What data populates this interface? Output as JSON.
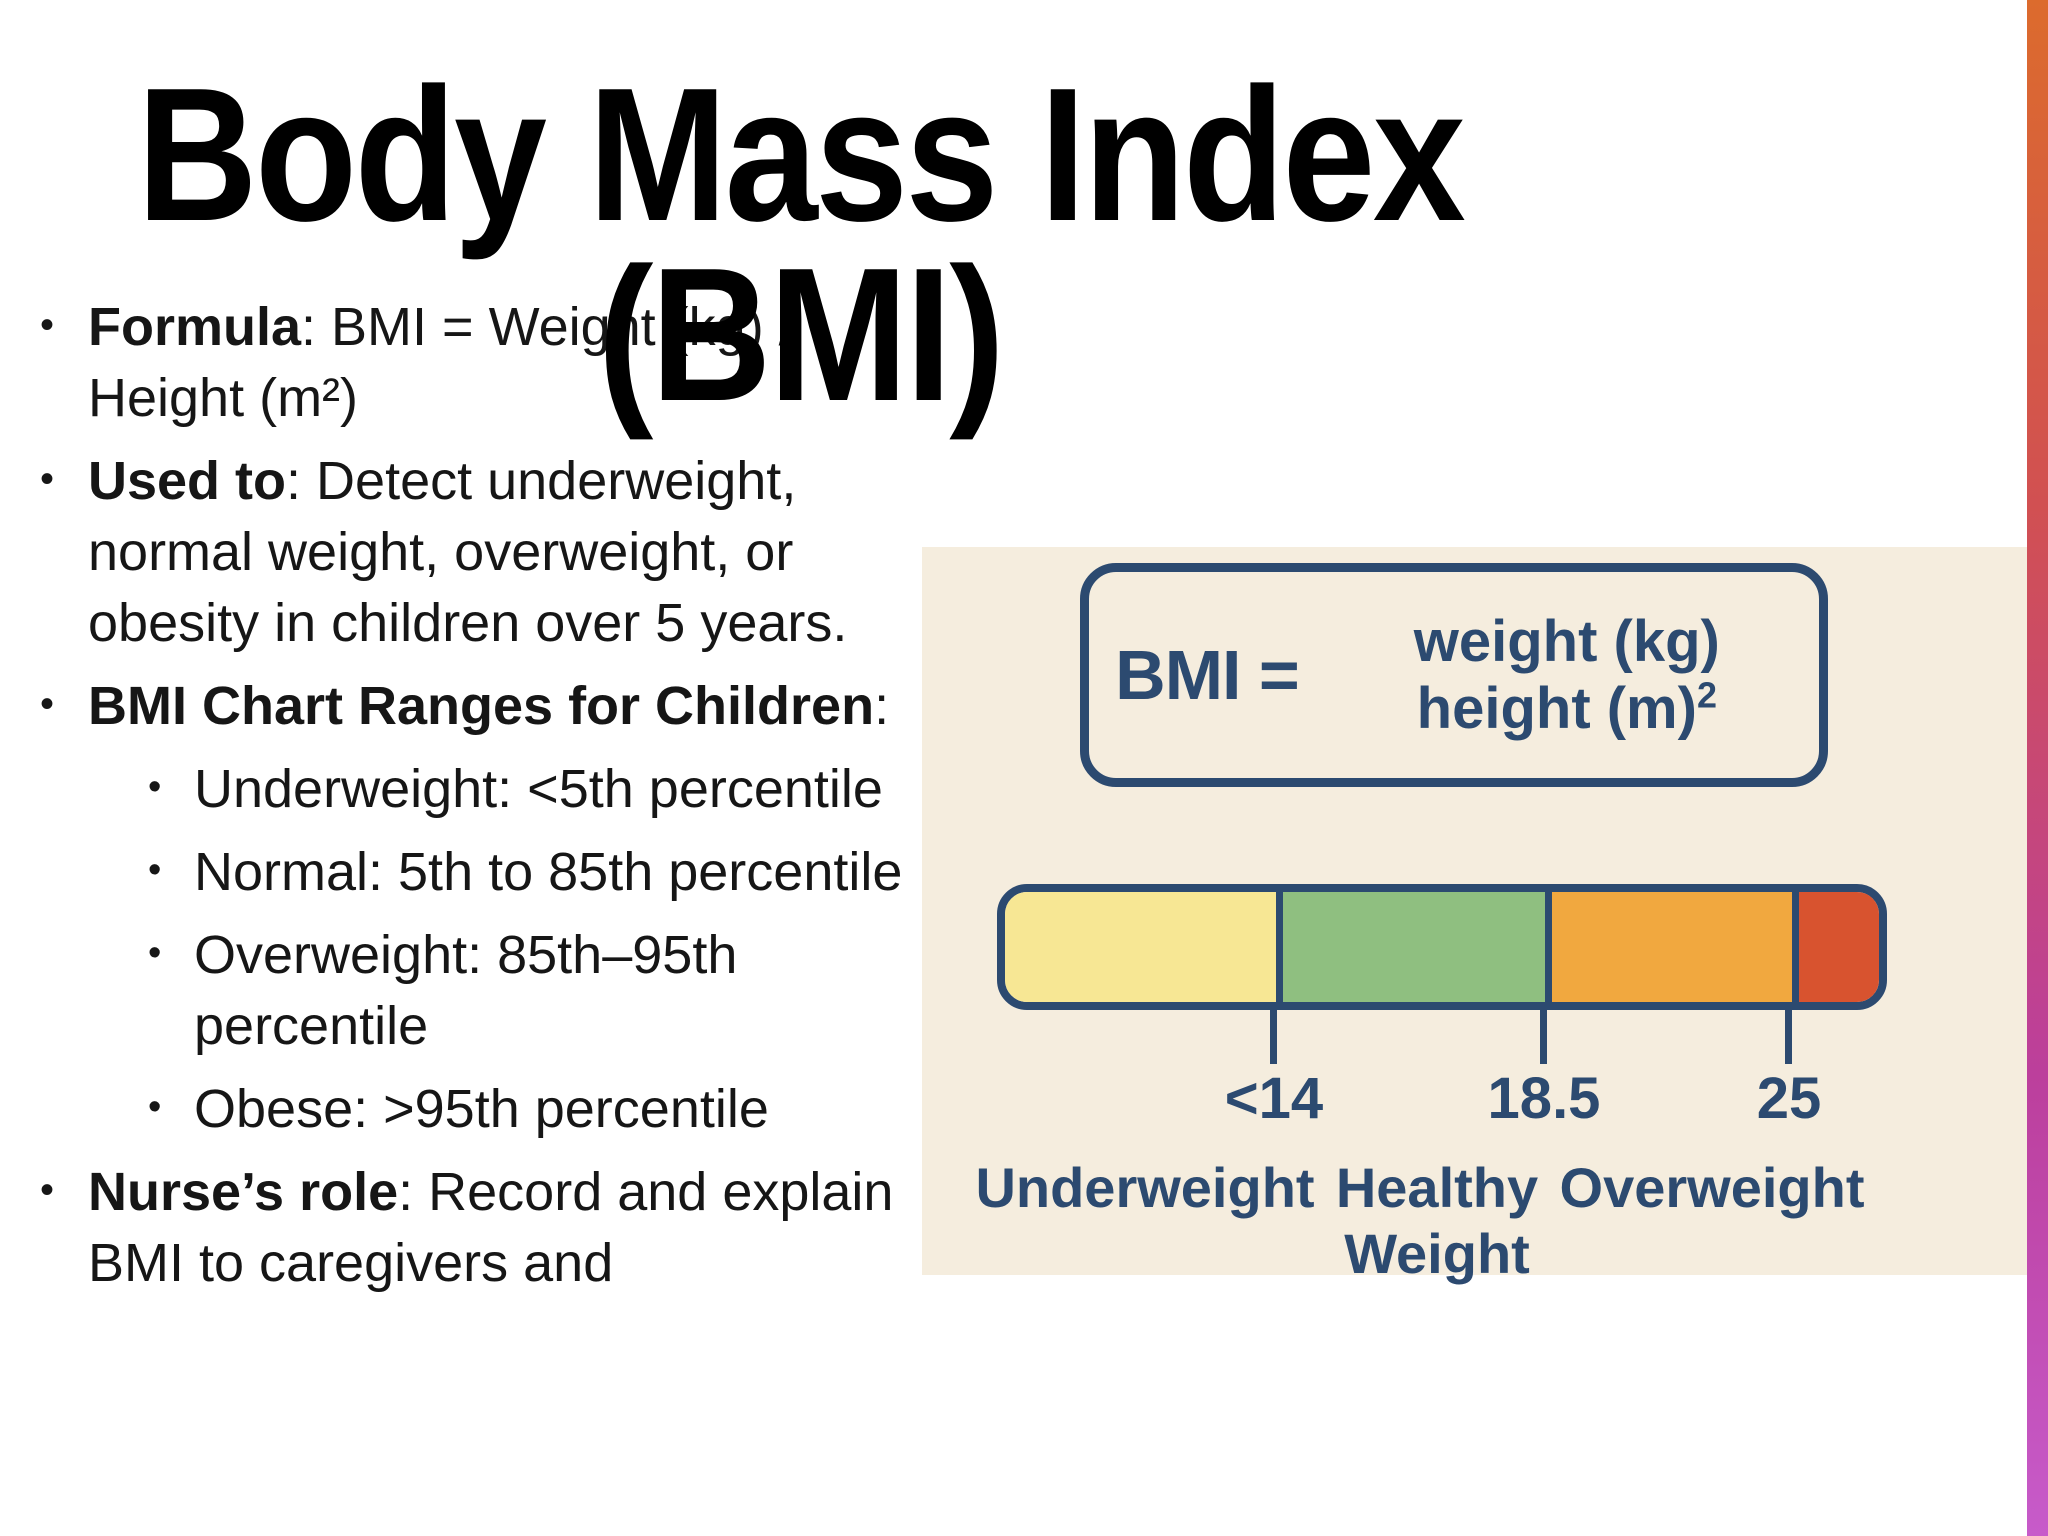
{
  "title": {
    "full": "Body Mass Index (BMI)",
    "line1": "Body Mass Index",
    "line2": "(BMI)"
  },
  "bullets": [
    {
      "lead": "Formula",
      "rest": ": BMI = Weight (kg) / Height (m²)"
    },
    {
      "lead": "Used to",
      "rest": ": Detect underweight, normal weight, overweight, or obesity in children over 5 years."
    },
    {
      "lead": "BMI Chart Ranges for Children",
      "rest": ":"
    },
    {
      "lead": "Nurse’s role",
      "rest": ": Record and explain BMI to caregivers and"
    }
  ],
  "sub_bullets": [
    "Underweight: <5th percentile",
    "Normal: 5th to 85th percentile",
    "Overweight: 85th–95th percentile",
    "Obese: >95th percentile"
  ],
  "figure": {
    "formula": {
      "lhs": "BMI =",
      "numerator": "weight (kg)",
      "denominator_base": "height (m)",
      "denominator_exponent": "2"
    },
    "scale": {
      "segments": [
        {
          "name": "underweight-band",
          "color": "#F7E794"
        },
        {
          "name": "healthy-band",
          "color": "#8FBF80"
        },
        {
          "name": "overweight-band",
          "color": "#F1A83F"
        },
        {
          "name": "obese-band",
          "color": "#D8532F"
        }
      ],
      "ticks": [
        "<14",
        "18.5",
        "25"
      ],
      "labels": [
        "Underweight",
        "Healthy Weight",
        "Overweight"
      ]
    }
  },
  "colors": {
    "navy": "#2C4A70",
    "panel_background": "#F5EDDE",
    "strip_gradient_top": "#DC6B2D",
    "strip_gradient_mid1": "#D15052",
    "strip_gradient_mid2": "#BC3F9C",
    "strip_gradient_bottom": "#C75BCA",
    "title_text": "#000000",
    "body_text": "#161616"
  }
}
